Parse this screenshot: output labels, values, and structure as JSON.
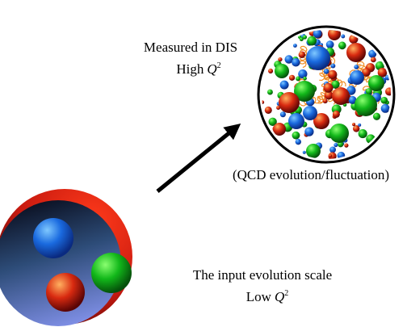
{
  "top_label": {
    "line1": "Measured in DIS",
    "line2": {
      "text": "High",
      "variable": "Q",
      "superscript": "2"
    }
  },
  "arrow_label": "(QCD evolution/fluctuation)",
  "bottom_label": {
    "line1": "The input evolution scale",
    "line2": {
      "text": "Low",
      "variable": "Q",
      "superscript": "2"
    }
  }
}
